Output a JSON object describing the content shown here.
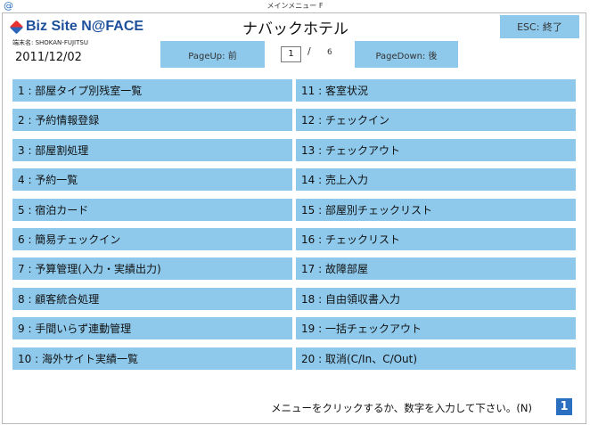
{
  "window": {
    "title": "メインメニュー F",
    "icon": "@"
  },
  "header": {
    "logo_text": "Biz Site N@FACE",
    "hotel_name": "ナバックホテル",
    "terminal_label": "端末名: SHOKAN-FUJITSU",
    "date": "2011/12/02",
    "page_up_label": "PageUp: 前",
    "page_down_label": "PageDown: 後",
    "esc_label": "ESC: 終了",
    "page_current": "1",
    "page_separator": "/",
    "page_total": "6"
  },
  "menu": {
    "items": [
      "1 : 部屋タイプ別残室一覧",
      "2 : 予約情報登録",
      "3 : 部屋割処理",
      "4 : 予約一覧",
      "5 : 宿泊カード",
      "6 : 簡易チェックイン",
      "7 : 予算管理(入力・実績出力)",
      "8 : 顧客統合処理",
      "9 : 手間いらず連動管理",
      "10 : 海外サイト実績一覧",
      "11 : 客室状況",
      "12 : チェックイン",
      "13 : チェックアウト",
      "14 : 売上入力",
      "15 : 部屋別チェックリスト",
      "16 : チェックリスト",
      "17 : 故障部屋",
      "18 : 自由領収書入力",
      "19 : 一括チェックアウト",
      "20 : 取消(C/In、C/Out)"
    ]
  },
  "footer": {
    "prompt": "メニューをクリックするか、数字を入力して下さい。(N)",
    "input_value": "1"
  },
  "colors": {
    "button_bg": "#8ec9ec",
    "input_bg": "#2a6fc0",
    "logo_blue": "#1d4f9c"
  }
}
